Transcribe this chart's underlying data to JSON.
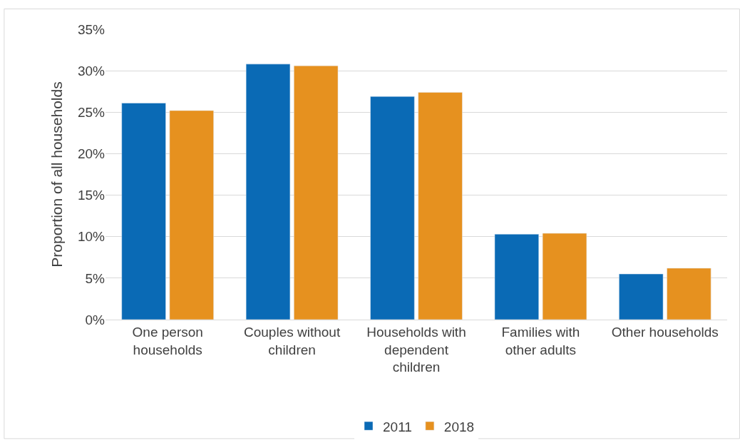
{
  "chart_data": {
    "type": "bar",
    "ylabel": "Proportion of all households",
    "categories": [
      "One person households",
      "Couples without children",
      "Households with dependent children",
      "Families with other adults",
      "Other households"
    ],
    "series": [
      {
        "name": "2011",
        "color": "#0a6ab5",
        "values": [
          26.1,
          30.8,
          26.9,
          10.3,
          5.5
        ]
      },
      {
        "name": "2018",
        "color": "#e6911f",
        "values": [
          25.2,
          30.6,
          27.4,
          10.4,
          6.2
        ]
      }
    ],
    "ylim": [
      0,
      35
    ],
    "yticks": [
      {
        "value": 0,
        "label": "0%"
      },
      {
        "value": 5,
        "label": "5%"
      },
      {
        "value": 10,
        "label": "10%"
      },
      {
        "value": 15,
        "label": "15%"
      },
      {
        "value": 20,
        "label": "20%"
      },
      {
        "value": 25,
        "label": "25%"
      },
      {
        "value": 30,
        "label": "30%"
      },
      {
        "value": 35,
        "label": "35%"
      }
    ],
    "grid": "y",
    "legend": "bottom"
  }
}
